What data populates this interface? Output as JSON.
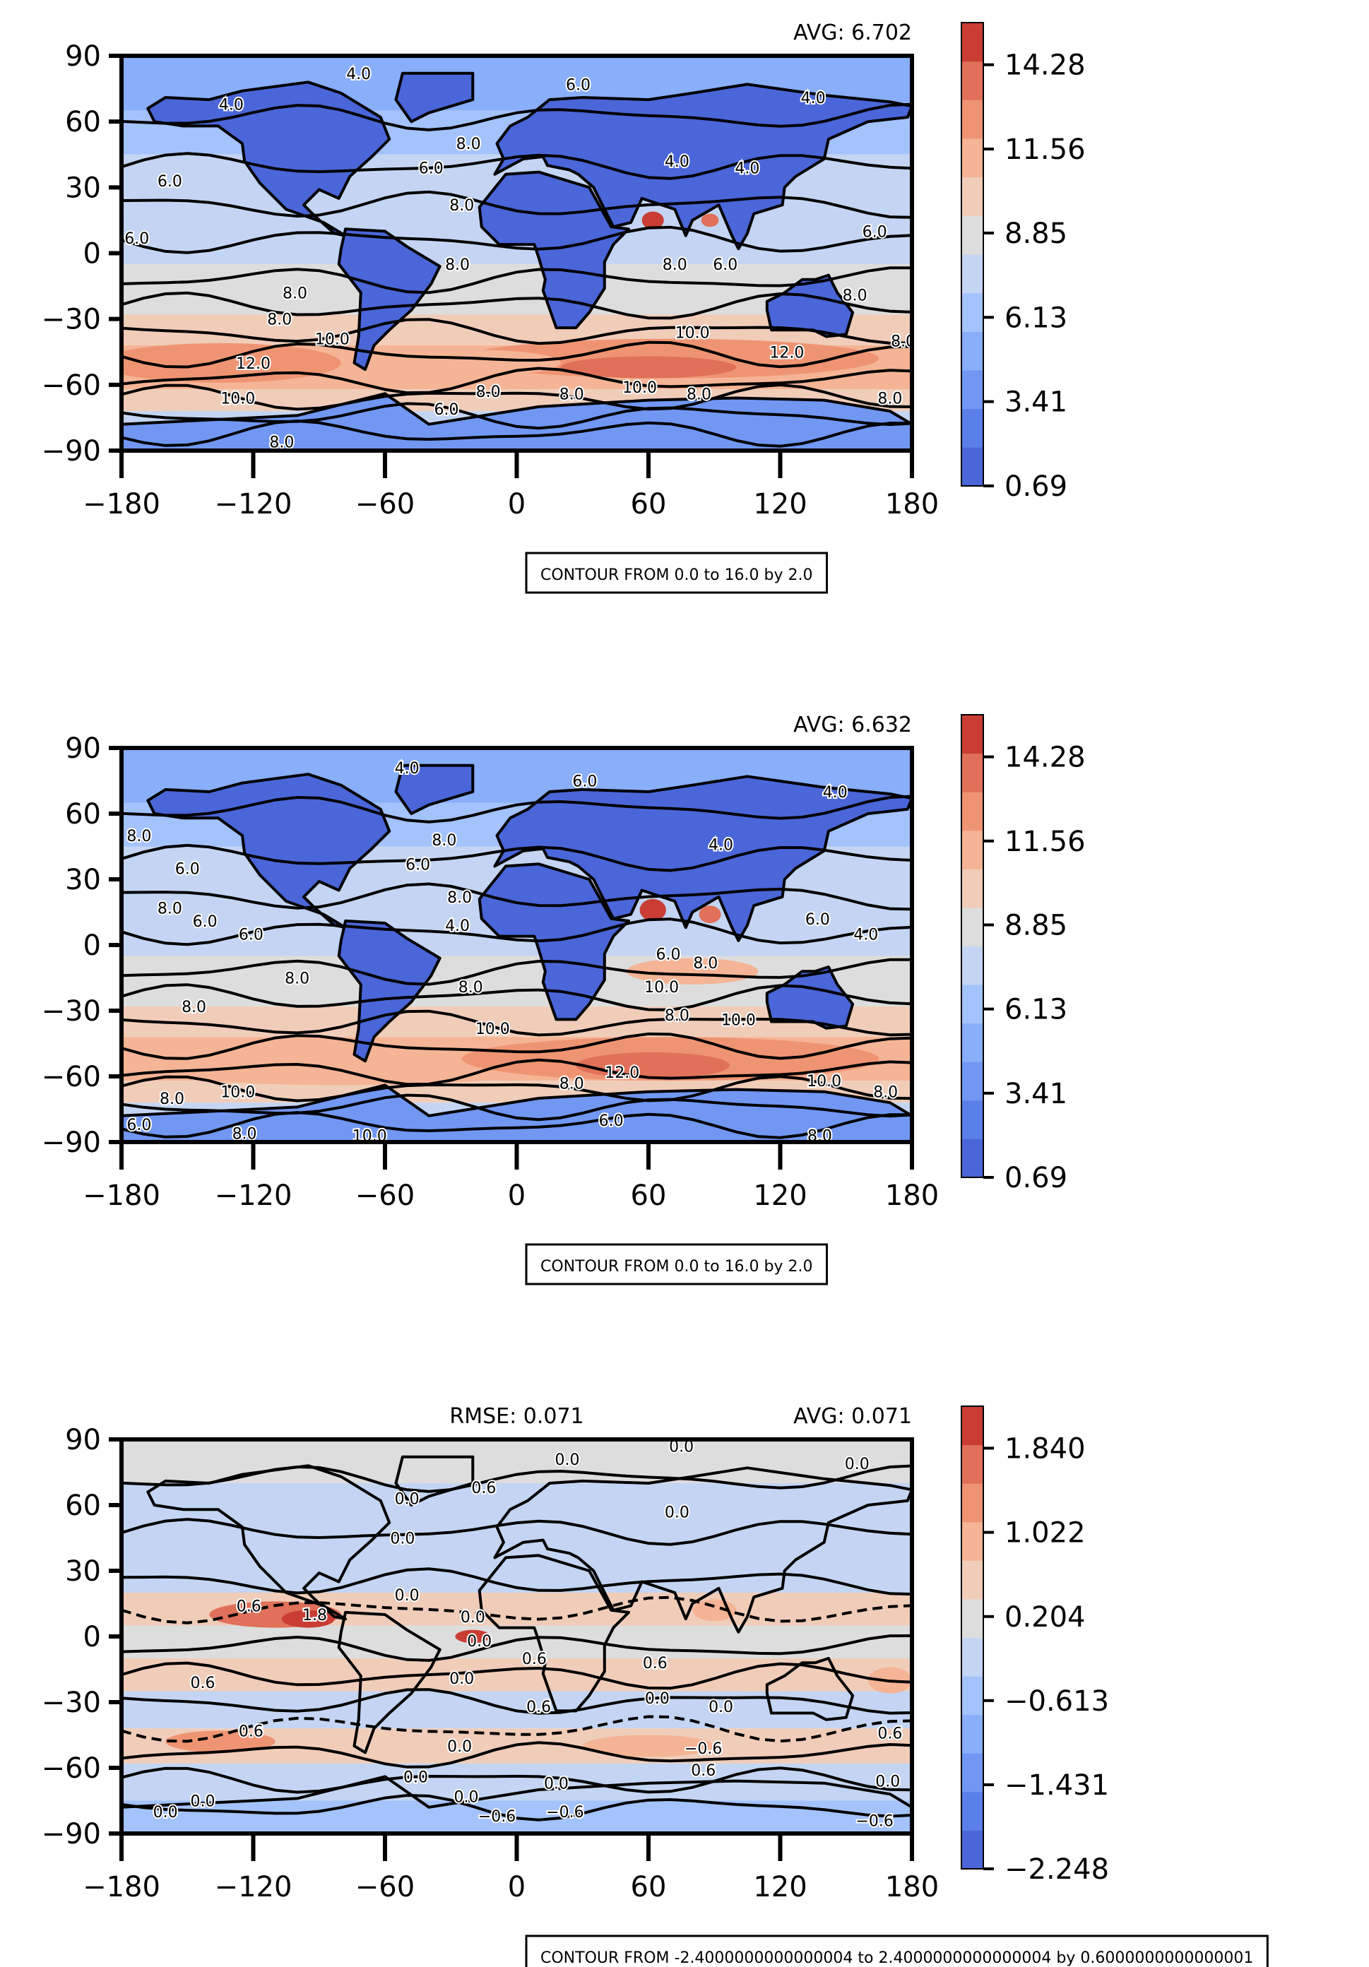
{
  "chart_data": [
    {
      "type": "heatmap",
      "avg_label": "AVG: 6.702",
      "xticks": [
        "−180",
        "−120",
        "−60",
        "0",
        "60",
        "120",
        "180"
      ],
      "yticks": [
        "90",
        "60",
        "30",
        "0",
        "−30",
        "−60",
        "−90"
      ],
      "xlim": [
        -180,
        180
      ],
      "ylim": [
        -90,
        90
      ],
      "colorbar_ticks": [
        "14.28",
        "11.56",
        "8.85",
        "6.13",
        "3.41",
        "0.69"
      ],
      "colorbar_range": [
        0.69,
        15.64
      ],
      "contour_note": "CONTOUR FROM 0.0 to 16.0 by 2.0",
      "contour_labels": [
        {
          "text": "4.0",
          "lon": -130,
          "lat": 68
        },
        {
          "text": "4.0",
          "lon": -72,
          "lat": 82
        },
        {
          "text": "6.0",
          "lon": 28,
          "lat": 77
        },
        {
          "text": "4.0",
          "lon": 135,
          "lat": 71
        },
        {
          "text": "8.0",
          "lon": -22,
          "lat": 50
        },
        {
          "text": "6.0",
          "lon": -39,
          "lat": 39
        },
        {
          "text": "6.0",
          "lon": -158,
          "lat": 33
        },
        {
          "text": "4.0",
          "lon": 73,
          "lat": 42
        },
        {
          "text": "4.0",
          "lon": 105,
          "lat": 39
        },
        {
          "text": "8.0",
          "lon": -25,
          "lat": 22
        },
        {
          "text": "6.0",
          "lon": -173,
          "lat": 7
        },
        {
          "text": "6.0",
          "lon": 163,
          "lat": 10
        },
        {
          "text": "8.0",
          "lon": -27,
          "lat": -5
        },
        {
          "text": "8.0",
          "lon": 72,
          "lat": -5
        },
        {
          "text": "6.0",
          "lon": 95,
          "lat": -5
        },
        {
          "text": "8.0",
          "lon": -101,
          "lat": -18
        },
        {
          "text": "8.0",
          "lon": -108,
          "lat": -30
        },
        {
          "text": "8.0",
          "lon": 154,
          "lat": -19
        },
        {
          "text": "10.0",
          "lon": -84,
          "lat": -39
        },
        {
          "text": "12.0",
          "lon": -120,
          "lat": -50
        },
        {
          "text": "10.0",
          "lon": 80,
          "lat": -36
        },
        {
          "text": "12.0",
          "lon": 123,
          "lat": -45
        },
        {
          "text": "10.0",
          "lon": -127,
          "lat": -66
        },
        {
          "text": "6.0",
          "lon": -32,
          "lat": -71
        },
        {
          "text": "8.0",
          "lon": -13,
          "lat": -63
        },
        {
          "text": "8.0",
          "lon": 25,
          "lat": -64
        },
        {
          "text": "10.0",
          "lon": 56,
          "lat": -61
        },
        {
          "text": "8.0",
          "lon": 83,
          "lat": -64
        },
        {
          "text": "8.0",
          "lon": -107,
          "lat": -86
        },
        {
          "text": "8.0",
          "lon": 170,
          "lat": -66
        },
        {
          "text": "8.0",
          "lon": 176,
          "lat": -40
        }
      ]
    },
    {
      "type": "heatmap",
      "avg_label": "AVG: 6.632",
      "xticks": [
        "−180",
        "−120",
        "−60",
        "0",
        "60",
        "120",
        "180"
      ],
      "yticks": [
        "90",
        "60",
        "30",
        "0",
        "−30",
        "−60",
        "−90"
      ],
      "xlim": [
        -180,
        180
      ],
      "ylim": [
        -90,
        90
      ],
      "colorbar_ticks": [
        "14.28",
        "11.56",
        "8.85",
        "6.13",
        "3.41",
        "0.69"
      ],
      "colorbar_range": [
        0.69,
        15.64
      ],
      "contour_note": "CONTOUR FROM 0.0 to 16.0 by 2.0",
      "contour_labels": [
        {
          "text": "4.0",
          "lon": -50,
          "lat": 81
        },
        {
          "text": "6.0",
          "lon": 31,
          "lat": 75
        },
        {
          "text": "4.0",
          "lon": 145,
          "lat": 70
        },
        {
          "text": "8.0",
          "lon": -172,
          "lat": 50
        },
        {
          "text": "8.0",
          "lon": -33,
          "lat": 48
        },
        {
          "text": "6.0",
          "lon": -150,
          "lat": 35
        },
        {
          "text": "6.0",
          "lon": -45,
          "lat": 37
        },
        {
          "text": "4.0",
          "lon": 93,
          "lat": 46
        },
        {
          "text": "8.0",
          "lon": -158,
          "lat": 17
        },
        {
          "text": "8.0",
          "lon": -26,
          "lat": 22
        },
        {
          "text": "6.0",
          "lon": -142,
          "lat": 11
        },
        {
          "text": "4.0",
          "lon": -27,
          "lat": 9
        },
        {
          "text": "6.0",
          "lon": -121,
          "lat": 5
        },
        {
          "text": "6.0",
          "lon": 137,
          "lat": 12
        },
        {
          "text": "4.0",
          "lon": 159,
          "lat": 5
        },
        {
          "text": "8.0",
          "lon": -100,
          "lat": -15
        },
        {
          "text": "6.0",
          "lon": 69,
          "lat": -4
        },
        {
          "text": "8.0",
          "lon": 86,
          "lat": -8
        },
        {
          "text": "8.0",
          "lon": -21,
          "lat": -19
        },
        {
          "text": "10.0",
          "lon": 66,
          "lat": -19
        },
        {
          "text": "8.0",
          "lon": -147,
          "lat": -28
        },
        {
          "text": "8.0",
          "lon": 73,
          "lat": -32
        },
        {
          "text": "10.0",
          "lon": 101,
          "lat": -34
        },
        {
          "text": "10.0",
          "lon": -11,
          "lat": -38
        },
        {
          "text": "12.0",
          "lon": 48,
          "lat": -58
        },
        {
          "text": "10.0",
          "lon": -127,
          "lat": -67
        },
        {
          "text": "8.0",
          "lon": -157,
          "lat": -70
        },
        {
          "text": "8.0",
          "lon": 25,
          "lat": -63
        },
        {
          "text": "10.0",
          "lon": 140,
          "lat": -62
        },
        {
          "text": "8.0",
          "lon": 168,
          "lat": -67
        },
        {
          "text": "6.0",
          "lon": 43,
          "lat": -80
        },
        {
          "text": "8.0",
          "lon": 138,
          "lat": -87
        },
        {
          "text": "6.0",
          "lon": -172,
          "lat": -82
        },
        {
          "text": "8.0",
          "lon": -124,
          "lat": -86
        },
        {
          "text": "10.0",
          "lon": -67,
          "lat": -87
        }
      ]
    },
    {
      "type": "heatmap",
      "rmse_label": "RMSE: 0.071",
      "avg_label": "AVG: 0.071",
      "xticks": [
        "−180",
        "−120",
        "−60",
        "0",
        "60",
        "120",
        "180"
      ],
      "yticks": [
        "90",
        "60",
        "30",
        "0",
        "−30",
        "−60",
        "−90"
      ],
      "xlim": [
        -180,
        180
      ],
      "ylim": [
        -90,
        90
      ],
      "colorbar_ticks": [
        "1.840",
        "1.022",
        "0.204",
        "−0.613",
        "−1.431",
        "−2.248"
      ],
      "colorbar_range": [
        -2.248,
        2.248
      ],
      "contour_note": "CONTOUR FROM -2.4000000000000004 to 2.4000000000000004 by 0.6000000000000001",
      "contour_labels": [
        {
          "text": "0.0",
          "lon": 75,
          "lat": 87
        },
        {
          "text": "0.0",
          "lon": 23,
          "lat": 81
        },
        {
          "text": "0.0",
          "lon": 155,
          "lat": 79
        },
        {
          "text": "0.6",
          "lon": -15,
          "lat": 68
        },
        {
          "text": "0.0",
          "lon": -50,
          "lat": 63
        },
        {
          "text": "0.0",
          "lon": 73,
          "lat": 57
        },
        {
          "text": "0.0",
          "lon": -52,
          "lat": 45
        },
        {
          "text": "0.0",
          "lon": -50,
          "lat": 19
        },
        {
          "text": "0.6",
          "lon": -122,
          "lat": 14
        },
        {
          "text": "1.8",
          "lon": -92,
          "lat": 10
        },
        {
          "text": "0.0",
          "lon": -20,
          "lat": 9
        },
        {
          "text": "0.0",
          "lon": -17,
          "lat": -2
        },
        {
          "text": "0.0",
          "lon": -25,
          "lat": -19
        },
        {
          "text": "0.6",
          "lon": 8,
          "lat": -10
        },
        {
          "text": "0.6",
          "lon": 63,
          "lat": -12
        },
        {
          "text": "0.0",
          "lon": 64,
          "lat": -28
        },
        {
          "text": "0.6",
          "lon": -143,
          "lat": -21
        },
        {
          "text": "0.6",
          "lon": 10,
          "lat": -32
        },
        {
          "text": "0.0",
          "lon": 93,
          "lat": -32
        },
        {
          "text": "0.6",
          "lon": -121,
          "lat": -43
        },
        {
          "text": "0.0",
          "lon": -26,
          "lat": -50
        },
        {
          "text": "−0.6",
          "lon": 85,
          "lat": -51
        },
        {
          "text": "0.6",
          "lon": 170,
          "lat": -44
        },
        {
          "text": "0.0",
          "lon": -46,
          "lat": -64
        },
        {
          "text": "0.6",
          "lon": 85,
          "lat": -61
        },
        {
          "text": "0.0",
          "lon": 18,
          "lat": -67
        },
        {
          "text": "0.0",
          "lon": -23,
          "lat": -73
        },
        {
          "text": "0.0",
          "lon": -143,
          "lat": -75
        },
        {
          "text": "0.0",
          "lon": -160,
          "lat": -80
        },
        {
          "text": "−0.6",
          "lon": -9,
          "lat": -82
        },
        {
          "text": "−0.6",
          "lon": 22,
          "lat": -80
        },
        {
          "text": "0.0",
          "lon": 169,
          "lat": -66
        },
        {
          "text": "−0.6",
          "lon": 163,
          "lat": -84
        }
      ]
    }
  ]
}
